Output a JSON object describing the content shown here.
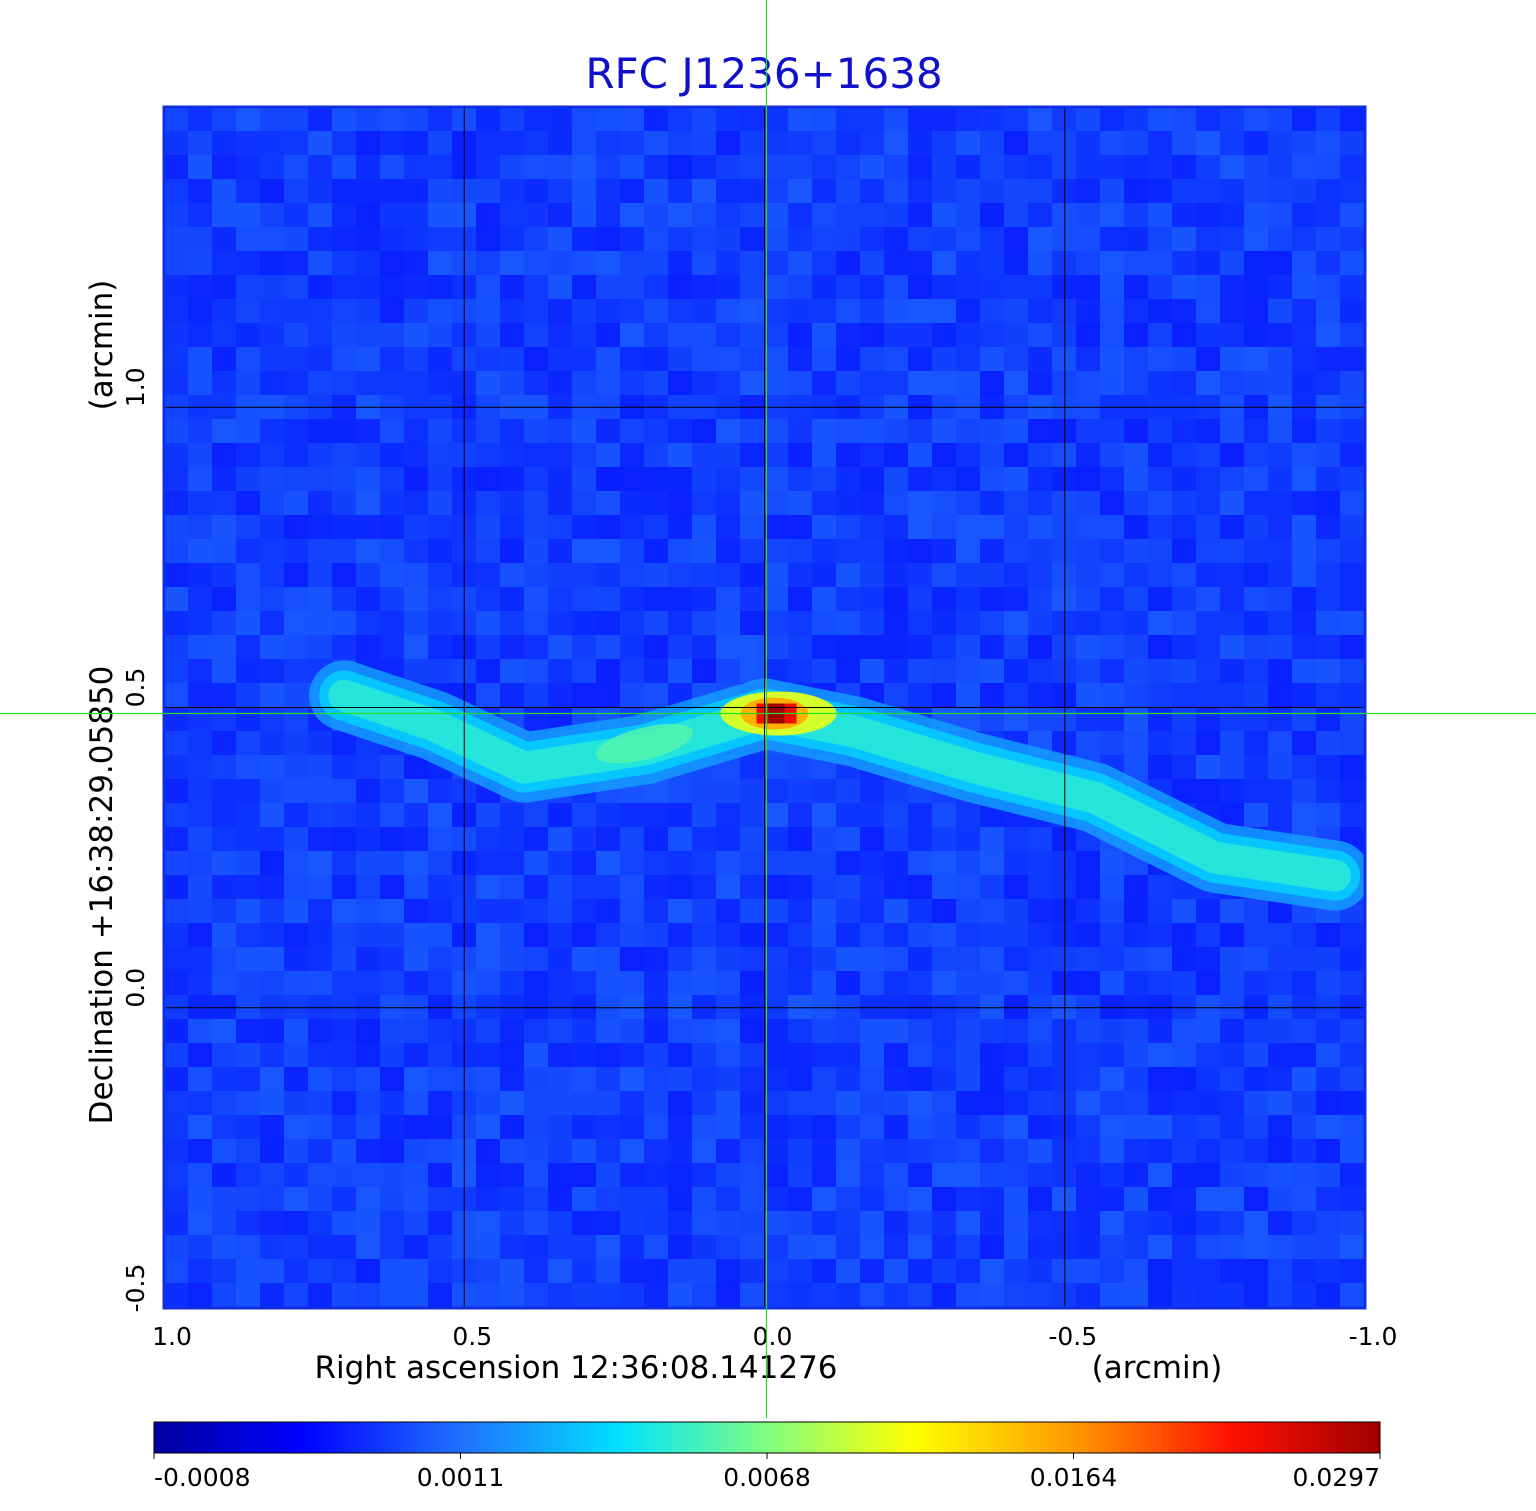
{
  "chart_data": {
    "type": "heatmap",
    "title": "RFC J1236+1638",
    "xlabel": "Right ascension  12:36:08.141276",
    "xunit": "(arcmin)",
    "ylabel": "Declination  +16:38:29.05850",
    "yunit": "(arcmin)",
    "xlim": [
      1.0,
      -1.0
    ],
    "ylim": [
      -0.5,
      1.5
    ],
    "x_ticks": [
      "1.0",
      "0.5",
      "0.0",
      "-0.5",
      "-1.0"
    ],
    "x_tick_values": [
      1.0,
      0.5,
      0.0,
      -0.5,
      -1.0
    ],
    "y_ticks": [
      "-0.5",
      "0.0",
      "0.5",
      "1.0"
    ],
    "y_tick_values": [
      -0.5,
      0.0,
      0.5,
      1.0
    ],
    "grid": true,
    "crosshair": {
      "x": 0.0,
      "y": 0.49,
      "color": "#22dd22"
    },
    "colormap": "jet",
    "colorbar_ticks": [
      "-0.0008",
      "0.0011",
      "0.0068",
      "0.0164",
      "0.0297"
    ],
    "colorbar_range": [
      -0.0008,
      0.0297
    ],
    "peak": {
      "x": -0.01,
      "y": 0.49,
      "value": 0.0297
    },
    "emission_ridge": {
      "x": [
        0.7,
        0.55,
        0.4,
        0.2,
        0.0,
        -0.15,
        -0.35,
        -0.55,
        -0.75,
        -0.95
      ],
      "y": [
        0.52,
        0.47,
        0.4,
        0.43,
        0.49,
        0.46,
        0.4,
        0.35,
        0.25,
        0.22
      ]
    }
  }
}
